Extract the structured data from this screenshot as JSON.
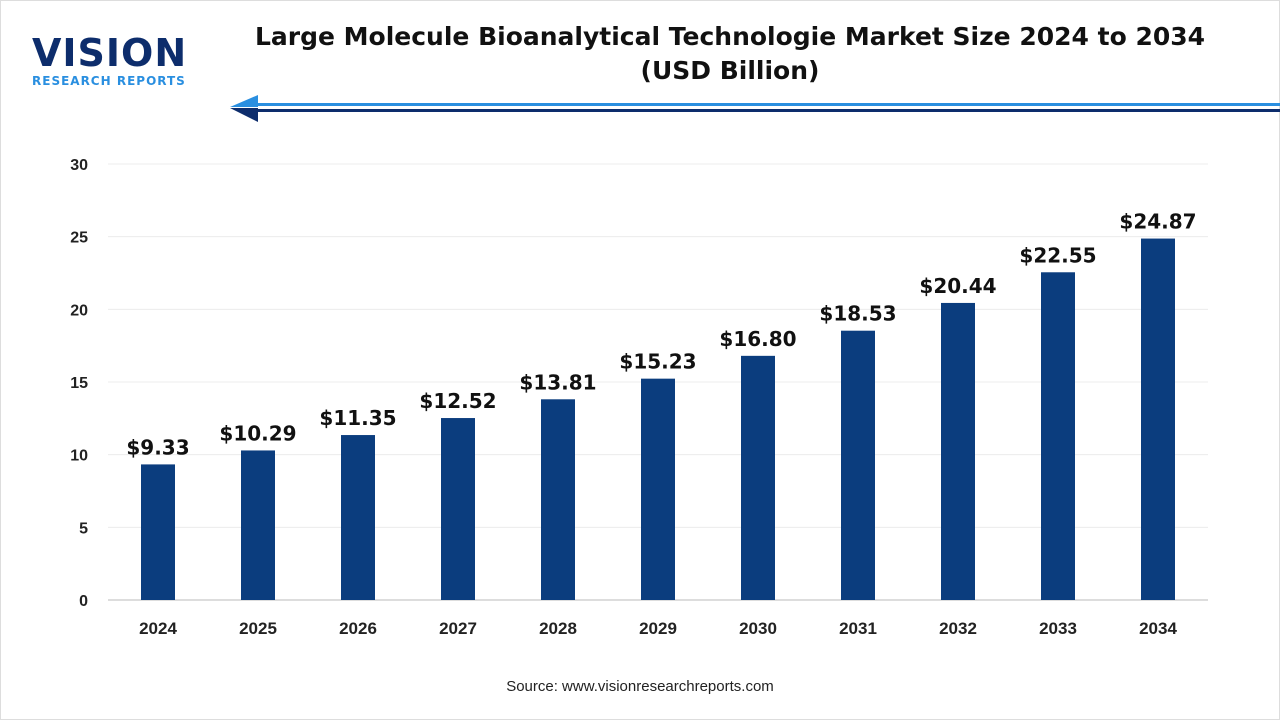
{
  "logo": {
    "name": "VISION",
    "tagline": "RESEARCH REPORTS"
  },
  "colors": {
    "bar": "#0b3d7e",
    "logo_dark": "#0d2d6c",
    "logo_light": "#2a8fe0"
  },
  "source": "Source: www.visionresearchreports.com",
  "chart_data": {
    "type": "bar",
    "title": "Large Molecule Bioanalytical Technologie Market Size 2024 to 2034",
    "subtitle": "(USD Billion)",
    "categories": [
      "2024",
      "2025",
      "2026",
      "2027",
      "2028",
      "2029",
      "2030",
      "2031",
      "2032",
      "2033",
      "2034"
    ],
    "values": [
      9.33,
      10.29,
      11.35,
      12.52,
      13.81,
      15.23,
      16.8,
      18.53,
      20.44,
      22.55,
      24.87
    ],
    "data_labels": [
      "$9.33",
      "$10.29",
      "$11.35",
      "$12.52",
      "$13.81",
      "$15.23",
      "$16.80",
      "$18.53",
      "$20.44",
      "$22.55",
      "$24.87"
    ],
    "ylim": [
      0,
      30
    ],
    "yticks": [
      0,
      5,
      10,
      15,
      20,
      25,
      30
    ],
    "grid": true,
    "xlabel": "",
    "ylabel": ""
  }
}
